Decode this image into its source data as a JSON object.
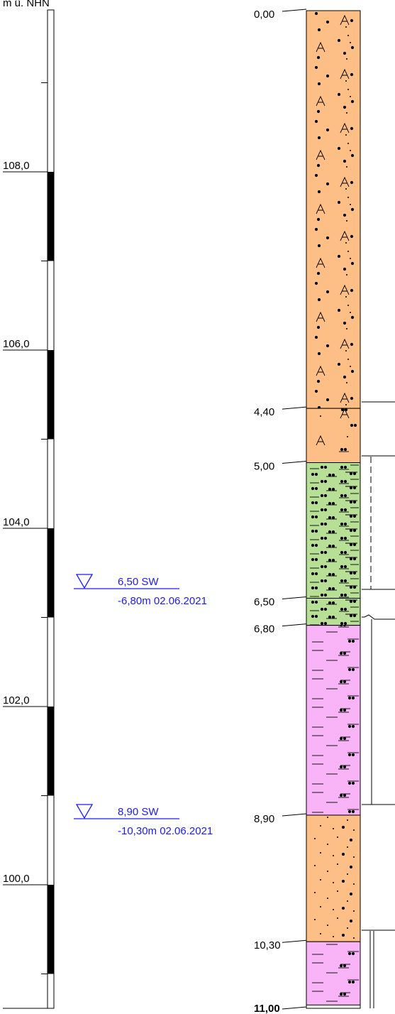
{
  "scale": {
    "header": "m ü. NHN",
    "ticks": [
      "108,0",
      "106,0",
      "104,0",
      "102,0",
      "100,0"
    ]
  },
  "water_levels": [
    {
      "depth_label": "6,50 SW",
      "measured": "-6,80m 02.06.2021",
      "depth": 6.5
    },
    {
      "depth_label": "8,90 SW",
      "measured": "-10,30m 02.06.2021",
      "depth": 8.9
    }
  ],
  "boundary_labels": [
    "0,00",
    "4,40",
    "5,00",
    "6,50",
    "6,80",
    "8,90",
    "10,30",
    "11,00"
  ],
  "layers": [
    {
      "top": 0.0,
      "bottom": 4.4,
      "pattern": "sand-gravel-crystalline",
      "color": "#fdbf86"
    },
    {
      "top": 4.4,
      "bottom": 5.0,
      "pattern": "sand-gravel-crystalline-silt",
      "color": "#fdbf86"
    },
    {
      "top": 5.0,
      "bottom": 6.8,
      "pattern": "silt-dense",
      "color": "#b7df96"
    },
    {
      "top": 6.8,
      "bottom": 8.9,
      "pattern": "clay-silt",
      "color": "#f9b3f7"
    },
    {
      "top": 8.9,
      "bottom": 10.3,
      "pattern": "sand-fine",
      "color": "#fdbf86"
    },
    {
      "top": 10.3,
      "bottom": 11.0,
      "pattern": "clay-silt",
      "color": "#f9b3f7"
    }
  ],
  "colors": {
    "water_marker": "#1a1aff",
    "outline": "#000000"
  }
}
